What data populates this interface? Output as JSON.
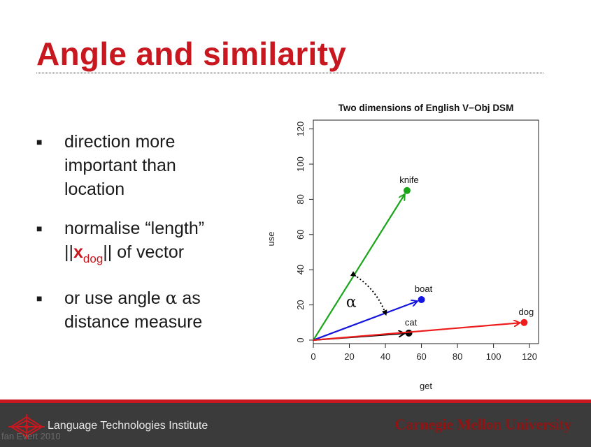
{
  "slide": {
    "title": "Angle and similarity",
    "bullets": [
      {
        "line1": "direction more",
        "line2": "important than",
        "line3": "location"
      },
      {
        "line1": "normalise “length”",
        "pre": "||",
        "vec": "x",
        "sub": "dog",
        "post": "|| of vector"
      },
      {
        "line1_pre": "or use angle ",
        "alpha": "α",
        "line1_post": " as",
        "line2": "distance measure"
      }
    ]
  },
  "footer": {
    "left_label": "Language Technologies Institute",
    "right_label": "Carnegie Mellon University",
    "credit": "fan Evert 2010"
  },
  "colors": {
    "title": "#c8171e",
    "knife": "#1aa51a",
    "boat": "#1515e0",
    "dog": "#ee1c1c",
    "cat": "#000000",
    "footer_bg": "#3b3b3b"
  },
  "chart_data": {
    "type": "scatter",
    "title": "Two dimensions of English V−Obj DSM",
    "xlabel": "get",
    "ylabel": "use",
    "xlim": [
      0,
      125
    ],
    "ylim": [
      -2,
      125
    ],
    "xticks": [
      0,
      20,
      40,
      60,
      80,
      100,
      120
    ],
    "yticks": [
      0,
      20,
      40,
      60,
      80,
      100,
      120
    ],
    "points": [
      {
        "label": "knife",
        "x": 52,
        "y": 85,
        "color": "#1aa51a",
        "arrow": true
      },
      {
        "label": "boat",
        "x": 60,
        "y": 23,
        "color": "#1515e0",
        "arrow": true
      },
      {
        "label": "cat",
        "x": 53,
        "y": 4,
        "color": "#000000",
        "arrow": true
      },
      {
        "label": "dog",
        "x": 117,
        "y": 10,
        "color": "#ee1c1c",
        "arrow": true
      }
    ],
    "annotation": {
      "text": "α"
    }
  }
}
